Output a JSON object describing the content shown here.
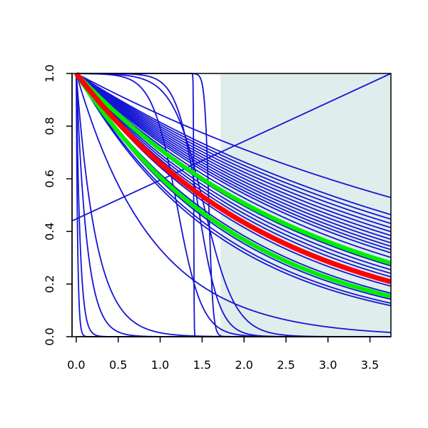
{
  "chart_data": {
    "type": "line",
    "title": "",
    "xlabel": "",
    "ylabel": "",
    "xlim": [
      -0.05,
      3.75
    ],
    "ylim": [
      0.0,
      1.0
    ],
    "grid": false,
    "x_ticks": [
      "0.0",
      "0.5",
      "1.0",
      "1.5",
      "2.0",
      "2.5",
      "3.0",
      "3.5"
    ],
    "y_ticks": [
      "0.0",
      "0.2",
      "0.4",
      "0.6",
      "0.8",
      "1.0"
    ],
    "shaded_region": {
      "x_from": 1.72,
      "x_to": 3.75,
      "color": "#e0eded"
    },
    "colors": {
      "series": "#1515d6",
      "highlight": "#ff0000",
      "band": "#00ee00"
    },
    "background_series": [
      {
        "family": "exp",
        "rate": 0.17
      },
      {
        "family": "exp",
        "rate": 0.205
      },
      {
        "family": "exp",
        "rate": 0.215
      },
      {
        "family": "exp",
        "rate": 0.225
      },
      {
        "family": "exp",
        "rate": 0.235
      },
      {
        "family": "exp",
        "rate": 0.245
      },
      {
        "family": "exp",
        "rate": 0.255
      },
      {
        "family": "exp",
        "rate": 0.265
      },
      {
        "family": "exp",
        "rate": 0.275
      },
      {
        "family": "exp",
        "rate": 0.285
      },
      {
        "family": "exp",
        "rate": 0.295
      },
      {
        "family": "exp",
        "rate": 0.305
      },
      {
        "family": "exp",
        "rate": 0.32
      },
      {
        "family": "exp",
        "rate": 0.335
      },
      {
        "family": "exp",
        "rate": 0.35
      },
      {
        "family": "exp",
        "rate": 0.365
      },
      {
        "family": "exp",
        "rate": 0.38
      },
      {
        "family": "exp",
        "rate": 0.395
      },
      {
        "family": "exp",
        "rate": 0.41
      },
      {
        "family": "exp",
        "rate": 0.44
      },
      {
        "family": "exp",
        "rate": 0.48
      },
      {
        "family": "exp",
        "rate": 0.52
      },
      {
        "family": "exp",
        "rate": 0.55
      },
      {
        "family": "exp",
        "rate": 0.57
      },
      {
        "family": "exp",
        "rate": 1.1
      },
      {
        "family": "exp",
        "rate": 4.2
      },
      {
        "family": "exp",
        "rate": 8.0
      },
      {
        "family": "exp",
        "rate": 22.0
      },
      {
        "family": "exp",
        "rate": 60.0
      },
      {
        "family": "logistic",
        "mid": 1.2,
        "steep": 2.8
      },
      {
        "family": "logistic",
        "mid": 1.45,
        "steep": 3.2
      },
      {
        "family": "logistic",
        "mid": 1.52,
        "steep": 2.2
      },
      {
        "family": "step",
        "at": 1.4
      },
      {
        "family": "step",
        "at": 1.58,
        "steep": 40
      },
      {
        "family": "linear",
        "x": [
          -0.05,
          3.75
        ],
        "y": [
          0.44,
          1.0
        ]
      }
    ],
    "series": [
      {
        "family": "exp",
        "rate": 0.418
      },
      {
        "family": "exp",
        "rate": 0.34
      },
      {
        "family": "exp",
        "rate": 0.5
      }
    ]
  }
}
